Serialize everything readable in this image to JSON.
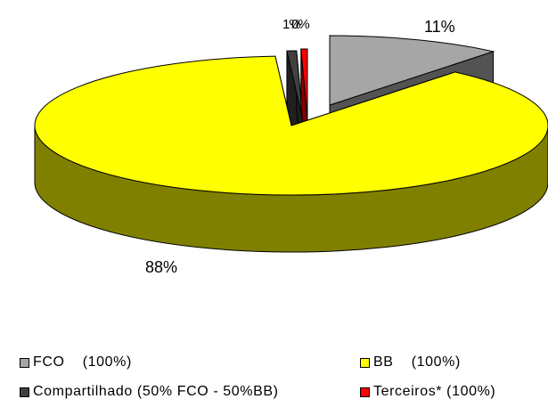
{
  "chart_data": {
    "type": "pie",
    "style": "3d-exploded",
    "slices": [
      {
        "name": "FCO    (100%)",
        "value": 11,
        "label": "11%",
        "color": "#a6a6a6"
      },
      {
        "name": "BB    (100%)",
        "value": 88,
        "label": "88%",
        "color": "#ffff00"
      },
      {
        "name": "Compartilhado (50% FCO - 50%BB)",
        "value": 0.6,
        "label": "1%",
        "color": "#404040"
      },
      {
        "name": "Terceiros* (100%)",
        "value": 0.4,
        "label": "0%",
        "color": "#ff0000"
      }
    ],
    "legend_position": "bottom"
  }
}
